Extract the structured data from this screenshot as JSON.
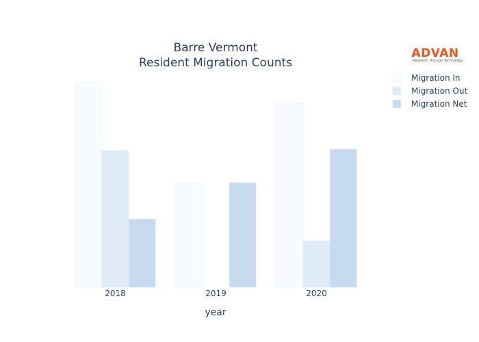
{
  "logo": {
    "name": "ADVAN",
    "tagline": "Research through Technology",
    "color": "#e8541c"
  },
  "chart_data": {
    "type": "bar",
    "title": "Barre Vermont",
    "subtitle": "Resident Migration Counts",
    "xlabel": "year",
    "ylabel": "",
    "categories": [
      "2018",
      "2019",
      "2020"
    ],
    "ylim": [
      0,
      310
    ],
    "grid": false,
    "legend_position": "top-right",
    "series": [
      {
        "name": "Migration In",
        "color": "#f7fbff",
        "values": [
          300,
          153,
          270
        ]
      },
      {
        "name": "Migration Out",
        "color": "#deebf7",
        "values": [
          200,
          0,
          68
        ]
      },
      {
        "name": "Migration Net",
        "color": "#c6dbef",
        "values": [
          100,
          153,
          202
        ]
      }
    ]
  }
}
